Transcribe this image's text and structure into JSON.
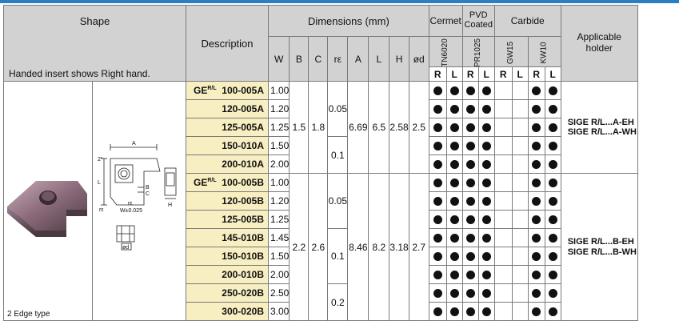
{
  "header": {
    "shape": "Shape",
    "hand_note": "Handed insert shows Right hand.",
    "description": "Description",
    "dimensions": "Dimensions (mm)",
    "dim_cols": [
      "W",
      "B",
      "C",
      "rε",
      "A",
      "L",
      "H",
      "ød"
    ],
    "cermet": "Cermet",
    "pvd_line1": "PVD",
    "pvd_line2": "Coated",
    "carbide": "Carbide",
    "grades": [
      "TN6020",
      "PR1025",
      "GW15",
      "KW10"
    ],
    "rl": [
      "R",
      "L",
      "R",
      "L",
      "R",
      "L",
      "R",
      "L"
    ],
    "applicable_line1": "Applicable",
    "applicable_line2": "holder"
  },
  "drawing": {
    "labels": [
      "A",
      "2°",
      "L",
      "B",
      "C",
      "rε",
      "rε",
      "W±0.025",
      "H",
      "ød"
    ]
  },
  "edge_type": "2 Edge type",
  "prefix": "GE",
  "prefix_hand": "R/L",
  "rows": [
    {
      "code": "100-005A",
      "W": "1.00",
      "dots": [
        1,
        1,
        1,
        1,
        0,
        0,
        1,
        1
      ]
    },
    {
      "code": "120-005A",
      "W": "1.20",
      "dots": [
        1,
        1,
        1,
        1,
        0,
        0,
        1,
        1
      ]
    },
    {
      "code": "125-005A",
      "W": "1.25",
      "dots": [
        1,
        1,
        1,
        1,
        0,
        0,
        1,
        1
      ]
    },
    {
      "code": "150-010A",
      "W": "1.50",
      "dots": [
        1,
        1,
        1,
        1,
        0,
        0,
        1,
        1
      ]
    },
    {
      "code": "200-010A",
      "W": "2.00",
      "dots": [
        1,
        1,
        1,
        1,
        0,
        0,
        1,
        1
      ]
    },
    {
      "code": "100-005B",
      "W": "1.00",
      "dots": [
        1,
        1,
        1,
        1,
        0,
        0,
        1,
        1
      ]
    },
    {
      "code": "120-005B",
      "W": "1.20",
      "dots": [
        1,
        1,
        1,
        1,
        0,
        0,
        1,
        1
      ]
    },
    {
      "code": "125-005B",
      "W": "1.25",
      "dots": [
        1,
        1,
        1,
        1,
        0,
        0,
        1,
        1
      ]
    },
    {
      "code": "145-010B",
      "W": "1.45",
      "dots": [
        1,
        1,
        1,
        1,
        0,
        0,
        1,
        1
      ]
    },
    {
      "code": "150-010B",
      "W": "1.50",
      "dots": [
        1,
        1,
        1,
        1,
        0,
        0,
        1,
        1
      ]
    },
    {
      "code": "200-010B",
      "W": "2.00",
      "dots": [
        1,
        1,
        1,
        1,
        0,
        0,
        1,
        1
      ]
    },
    {
      "code": "250-020B",
      "W": "2.50",
      "dots": [
        1,
        1,
        1,
        1,
        0,
        0,
        1,
        1
      ]
    },
    {
      "code": "300-020B",
      "W": "3.00",
      "dots": [
        1,
        1,
        1,
        1,
        0,
        0,
        1,
        1
      ]
    }
  ],
  "groupA": {
    "B": "1.5",
    "C": "1.8",
    "re1": "0.05",
    "re2": "0.1",
    "A": "6.69",
    "L": "6.5",
    "H": "2.58",
    "d": "2.5",
    "holder_line1": "SIGE R/L...A-EH",
    "holder_line2": "SIGE R/L...A-WH"
  },
  "groupB": {
    "B": "2.2",
    "C": "2.6",
    "re1": "0.05",
    "re2": "0.1",
    "re3": "0.2",
    "A": "8.46",
    "L": "8.2",
    "H": "3.18",
    "d": "2.7",
    "holder_line1": "SIGE R/L...B-EH",
    "holder_line2": "SIGE R/L...B-WH"
  },
  "colors": {
    "header_bg": "#d2d2d2",
    "desc_bg": "#f7eec2",
    "top_line": "#2a7fc0"
  }
}
